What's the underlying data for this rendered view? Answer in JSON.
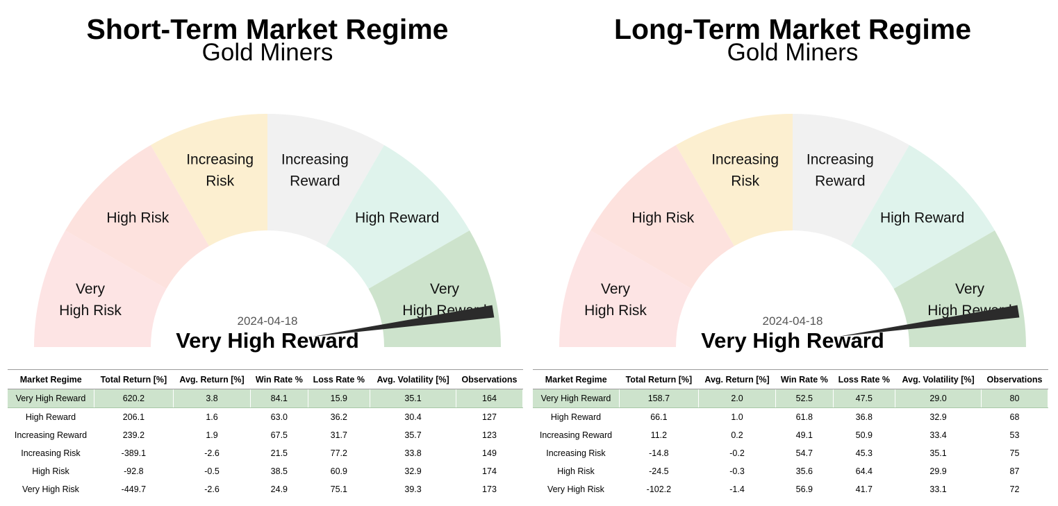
{
  "chart_data": [
    {
      "type": "gauge",
      "title": "Short-Term Market Regime",
      "subtitle": "Gold Miners",
      "segments": [
        "Very High Risk",
        "High Risk",
        "Increasing Risk",
        "Increasing Reward",
        "High Reward",
        "Very High Reward"
      ],
      "segment_labels": [
        [
          "Very",
          "High Risk"
        ],
        [
          "High Risk"
        ],
        [
          "Increasing",
          "Risk"
        ],
        [
          "Increasing",
          "Reward"
        ],
        [
          "High Reward"
        ],
        [
          "Very",
          "High Reward"
        ]
      ],
      "segment_colors": [
        "#fde4e4",
        "#fde2de",
        "#fcefd0",
        "#f1f1f1",
        "#dff3ec",
        "#cde3cc"
      ],
      "pointer_value": 0.95,
      "date": "2024-04-18",
      "current_regime": "Very High Reward",
      "table": {
        "columns": [
          "Market Regime",
          "Total Return [%]",
          "Avg. Return [%]",
          "Win Rate %",
          "Loss Rate %",
          "Avg. Volatility [%]",
          "Observations"
        ],
        "highlight_row": 0,
        "rows": [
          [
            "Very High Reward",
            "620.2",
            "3.8",
            "84.1",
            "15.9",
            "35.1",
            "164"
          ],
          [
            "High Reward",
            "206.1",
            "1.6",
            "63.0",
            "36.2",
            "30.4",
            "127"
          ],
          [
            "Increasing Reward",
            "239.2",
            "1.9",
            "67.5",
            "31.7",
            "35.7",
            "123"
          ],
          [
            "Increasing Risk",
            "-389.1",
            "-2.6",
            "21.5",
            "77.2",
            "33.8",
            "149"
          ],
          [
            "High Risk",
            "-92.8",
            "-0.5",
            "38.5",
            "60.9",
            "32.9",
            "174"
          ],
          [
            "Very High Risk",
            "-449.7",
            "-2.6",
            "24.9",
            "75.1",
            "39.3",
            "173"
          ]
        ]
      }
    },
    {
      "type": "gauge",
      "title": "Long-Term Market Regime",
      "subtitle": "Gold Miners",
      "segments": [
        "Very High Risk",
        "High Risk",
        "Increasing Risk",
        "Increasing Reward",
        "High Reward",
        "Very High Reward"
      ],
      "segment_labels": [
        [
          "Very",
          "High Risk"
        ],
        [
          "High Risk"
        ],
        [
          "Increasing",
          "Risk"
        ],
        [
          "Increasing",
          "Reward"
        ],
        [
          "High Reward"
        ],
        [
          "Very",
          "High Reward"
        ]
      ],
      "segment_colors": [
        "#fde4e4",
        "#fde2de",
        "#fcefd0",
        "#f1f1f1",
        "#dff3ec",
        "#cde3cc"
      ],
      "pointer_value": 0.95,
      "date": "2024-04-18",
      "current_regime": "Very High Reward",
      "table": {
        "columns": [
          "Market Regime",
          "Total Return [%]",
          "Avg. Return [%]",
          "Win Rate %",
          "Loss Rate %",
          "Avg. Volatility [%]",
          "Observations"
        ],
        "highlight_row": 0,
        "rows": [
          [
            "Very High Reward",
            "158.7",
            "2.0",
            "52.5",
            "47.5",
            "29.0",
            "80"
          ],
          [
            "High Reward",
            "66.1",
            "1.0",
            "61.8",
            "36.8",
            "32.9",
            "68"
          ],
          [
            "Increasing Reward",
            "11.2",
            "0.2",
            "49.1",
            "50.9",
            "33.4",
            "53"
          ],
          [
            "Increasing Risk",
            "-14.8",
            "-0.2",
            "54.7",
            "45.3",
            "35.1",
            "75"
          ],
          [
            "High Risk",
            "-24.5",
            "-0.3",
            "35.6",
            "64.4",
            "29.9",
            "87"
          ],
          [
            "Very High Risk",
            "-102.2",
            "-1.4",
            "56.9",
            "41.7",
            "33.1",
            "72"
          ]
        ]
      }
    }
  ]
}
